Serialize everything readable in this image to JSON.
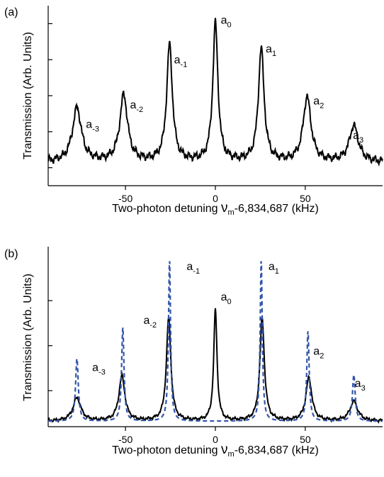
{
  "chart_data": [
    {
      "type": "line",
      "panel_label": "(a)",
      "xlabel_pre": "Two-photon detuning ",
      "xlabel_nu": "ν",
      "xlabel_sub": "m",
      "xlabel_post": "-6,834,687 (kHz)",
      "ylabel": "Transmission (Arb. Units)",
      "xlim": [
        -93,
        93
      ],
      "ylim": [
        0,
        1.0
      ],
      "xticks": [
        -50,
        0,
        50
      ],
      "xtick_labels": [
        "-50",
        "0",
        "50"
      ],
      "yticks": [
        0.1,
        0.3,
        0.5,
        0.7,
        0.9
      ],
      "grid": false,
      "series": [
        {
          "color": "#000000",
          "style": "solid",
          "baseline": 0.13,
          "peaks": [
            {
              "x": -77,
              "h": 0.3,
              "w": 3.0
            },
            {
              "x": -51,
              "h": 0.37,
              "w": 2.6
            },
            {
              "x": -25.5,
              "h": 0.65,
              "w": 1.9
            },
            {
              "x": 0,
              "h": 0.77,
              "w": 1.7
            },
            {
              "x": 25.5,
              "h": 0.63,
              "w": 1.9
            },
            {
              "x": 51,
              "h": 0.36,
              "w": 2.6
            },
            {
              "x": 77,
              "h": 0.2,
              "w": 3.0
            }
          ]
        }
      ],
      "annotations": [
        {
          "base": "a",
          "sub": "-3",
          "x": -72,
          "y": 0.32
        },
        {
          "base": "a",
          "sub": "-2",
          "x": -47.5,
          "y": 0.43
        },
        {
          "base": "a",
          "sub": "-1",
          "x": -23,
          "y": 0.68
        },
        {
          "base": "a",
          "sub": "0",
          "x": 3,
          "y": 0.9
        },
        {
          "base": "a",
          "sub": "1",
          "x": 28,
          "y": 0.74
        },
        {
          "base": "a",
          "sub": "2",
          "x": 54.5,
          "y": 0.45
        },
        {
          "base": "a",
          "sub": "3",
          "x": 76.5,
          "y": 0.26
        }
      ]
    },
    {
      "type": "line",
      "panel_label": "(b)",
      "xlabel_pre": "Two-photon detuning ",
      "xlabel_nu": "ν",
      "xlabel_sub": "m",
      "xlabel_post": "-6,834,687 (kHz)",
      "ylabel": "Transmission (Arb. Units)",
      "xlim": [
        -93,
        93
      ],
      "ylim": [
        0,
        1.0
      ],
      "xticks": [
        -50,
        0,
        50
      ],
      "xtick_labels": [
        "-50",
        "0",
        "50"
      ],
      "yticks": [
        0.2,
        0.45,
        0.7
      ],
      "grid": false,
      "series": [
        {
          "color": "#000000",
          "style": "solid",
          "baseline": 0.03,
          "peaks": [
            {
              "x": -77,
              "h": 0.13,
              "w": 2.6
            },
            {
              "x": -52,
              "h": 0.25,
              "w": 2.0
            },
            {
              "x": -26,
              "h": 0.57,
              "w": 1.5
            },
            {
              "x": 0,
              "h": 0.62,
              "w": 1.1
            },
            {
              "x": 26,
              "h": 0.57,
              "w": 1.5
            },
            {
              "x": 52,
              "h": 0.24,
              "w": 2.0
            },
            {
              "x": 77,
              "h": 0.11,
              "w": 2.6
            }
          ]
        },
        {
          "color": "#3355aa",
          "style": "dashed",
          "baseline": 0.03,
          "peaks": [
            {
              "x": -77,
              "h": 0.35,
              "w": 0.9
            },
            {
              "x": -51.5,
              "h": 0.52,
              "w": 0.8
            },
            {
              "x": -25.5,
              "h": 0.9,
              "w": 0.7
            },
            {
              "x": 25.5,
              "h": 0.9,
              "w": 0.7
            },
            {
              "x": 51.5,
              "h": 0.5,
              "w": 0.8
            },
            {
              "x": 77,
              "h": 0.26,
              "w": 0.9
            }
          ]
        }
      ],
      "annotations": [
        {
          "base": "a",
          "sub": "-3",
          "x": -68.5,
          "y": 0.31
        },
        {
          "base": "a",
          "sub": "-2",
          "x": -40,
          "y": 0.57
        },
        {
          "base": "a",
          "sub": "-1",
          "x": -16,
          "y": 0.87
        },
        {
          "base": "a",
          "sub": "0",
          "x": 3,
          "y": 0.7
        },
        {
          "base": "a",
          "sub": "1",
          "x": 29.5,
          "y": 0.87
        },
        {
          "base": "a",
          "sub": "2",
          "x": 54.5,
          "y": 0.4
        },
        {
          "base": "a",
          "sub": "3",
          "x": 77.5,
          "y": 0.22
        }
      ]
    }
  ]
}
